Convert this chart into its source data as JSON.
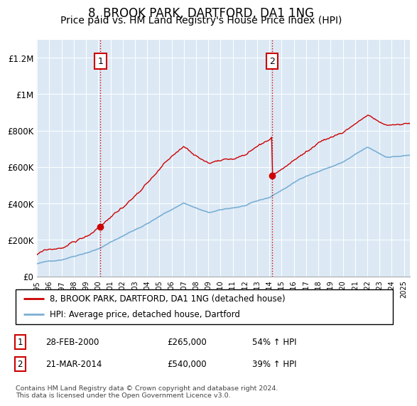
{
  "title": "8, BROOK PARK, DARTFORD, DA1 1NG",
  "subtitle": "Price paid vs. HM Land Registry's House Price Index (HPI)",
  "title_fontsize": 12,
  "subtitle_fontsize": 10,
  "hpi_color": "#7bafd4",
  "price_color": "#cc0000",
  "shade_color": "#dce9f5",
  "background_color": "#dce9f5",
  "plot_bg_color": "#dce9f5",
  "ylim": [
    0,
    1300000
  ],
  "yticks": [
    0,
    200000,
    400000,
    600000,
    800000,
    1000000,
    1200000
  ],
  "ytick_labels": [
    "£0",
    "£200K",
    "£400K",
    "£600K",
    "£800K",
    "£1M",
    "£1.2M"
  ],
  "legend_label_price": "8, BROOK PARK, DARTFORD, DA1 1NG (detached house)",
  "legend_label_hpi": "HPI: Average price, detached house, Dartford",
  "sale1_label": "1",
  "sale1_date": "28-FEB-2000",
  "sale1_price": "£265,000",
  "sale1_hpi": "54% ↑ HPI",
  "sale1_year": 2000.17,
  "sale1_value": 265000,
  "sale2_label": "2",
  "sale2_date": "21-MAR-2014",
  "sale2_price": "£540,000",
  "sale2_hpi": "39% ↑ HPI",
  "sale2_year": 2014.22,
  "sale2_value": 540000,
  "vline_color": "#cc0000",
  "vline_style": ":",
  "footer": "Contains HM Land Registry data © Crown copyright and database right 2024.\nThis data is licensed under the Open Government Licence v3.0.",
  "xmin": 1995.0,
  "xmax": 2025.5,
  "n_points": 370
}
